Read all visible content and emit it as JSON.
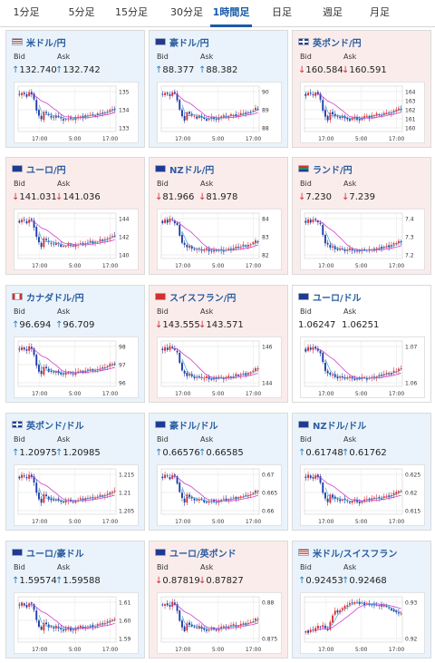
{
  "tabs": [
    "1分足",
    "5分足",
    "15分足",
    "30分足",
    "1時間足",
    "日足",
    "週足",
    "月足"
  ],
  "active_tab": 4,
  "labels": {
    "bid": "Bid",
    "ask": "Ask"
  },
  "colors": {
    "accent": "#1a5aa8",
    "up": "#2a7ab8",
    "down": "#d03030",
    "candle_up": "#e03030",
    "candle_down": "#1f3ea6",
    "ma1": "#d040d0",
    "ma2": "#40a0e0"
  },
  "cards": [
    {
      "name": "米ドル/円",
      "flag": "us",
      "bg": "up",
      "bid": "132.740",
      "ask": "132.742",
      "dir": "up",
      "yticks": [
        "135",
        "134",
        "133"
      ],
      "xticks": [
        "17:00",
        "5:00",
        "17:00"
      ]
    },
    {
      "name": "豪ドル/円",
      "flag": "au",
      "bg": "up",
      "bid": "88.377",
      "ask": "88.382",
      "dir": "up",
      "yticks": [
        "90",
        "89",
        "88"
      ],
      "xticks": [
        "17:00",
        "5:00",
        "17:00"
      ]
    },
    {
      "name": "英ポンド/円",
      "flag": "gb",
      "bg": "down",
      "bid": "160.584",
      "ask": "160.591",
      "dir": "down",
      "yticks": [
        "164",
        "163",
        "162",
        "161",
        "160"
      ],
      "xticks": [
        "17:00",
        "5:00",
        "17:00"
      ]
    },
    {
      "name": "ユーロ/円",
      "flag": "eu",
      "bg": "down",
      "bid": "141.031",
      "ask": "141.036",
      "dir": "down",
      "yticks": [
        "144",
        "142",
        "140"
      ],
      "xticks": [
        "17:00",
        "5:00",
        "17:00"
      ]
    },
    {
      "name": "NZドル/円",
      "flag": "nz",
      "bg": "down",
      "bid": "81.966",
      "ask": "81.978",
      "dir": "down",
      "yticks": [
        "84",
        "83",
        "82"
      ],
      "xticks": [
        "17:00",
        "5:00",
        "17:00"
      ]
    },
    {
      "name": "ランド/円",
      "flag": "za",
      "bg": "down",
      "bid": "7.230",
      "ask": "7.239",
      "dir": "down",
      "yticks": [
        "7.4",
        "7.3",
        "7.2"
      ],
      "xticks": [
        "17:00",
        "5:00",
        "17:00"
      ]
    },
    {
      "name": "カナダドル/円",
      "flag": "ca",
      "bg": "up",
      "bid": "96.694",
      "ask": "96.709",
      "dir": "up",
      "yticks": [
        "98",
        "97",
        "96"
      ],
      "xticks": [
        "17:00",
        "5:00",
        "17:00"
      ]
    },
    {
      "name": "スイスフラン/円",
      "flag": "ch",
      "bg": "down",
      "bid": "143.555",
      "ask": "143.571",
      "dir": "down",
      "yticks": [
        "146",
        "144"
      ],
      "xticks": [
        "17:00",
        "5:00",
        "17:00"
      ]
    },
    {
      "name": "ユーロ/ドル",
      "flag": "eu",
      "bg": "white",
      "bid": "1.06247",
      "ask": "1.06251",
      "dir": "none",
      "yticks": [
        "1.07",
        "1.06"
      ],
      "xticks": [
        "17:00",
        "5:00",
        "17:00"
      ]
    },
    {
      "name": "英ポンド/ドル",
      "flag": "gb",
      "bg": "up",
      "bid": "1.20975",
      "ask": "1.20985",
      "dir": "up",
      "yticks": [
        "1.215",
        "1.21",
        "1.205"
      ],
      "xticks": [
        "17:00",
        "5:00",
        "17:00"
      ]
    },
    {
      "name": "豪ドル/ドル",
      "flag": "au",
      "bg": "up",
      "bid": "0.66576",
      "ask": "0.66585",
      "dir": "up",
      "yticks": [
        "0.67",
        "0.665",
        "0.66"
      ],
      "xticks": [
        "17:00",
        "5:00",
        "17:00"
      ]
    },
    {
      "name": "NZドル/ドル",
      "flag": "nz",
      "bg": "up",
      "bid": "0.61748",
      "ask": "0.61762",
      "dir": "up",
      "yticks": [
        "0.625",
        "0.62",
        "0.615"
      ],
      "xticks": [
        "17:00",
        "5:00",
        "17:00"
      ]
    },
    {
      "name": "ユーロ/豪ドル",
      "flag": "eu",
      "bg": "up",
      "bid": "1.59574",
      "ask": "1.59588",
      "dir": "up",
      "yticks": [
        "1.61",
        "1.60",
        "1.59"
      ],
      "xticks": [
        "17:00",
        "5:00",
        "17:00"
      ]
    },
    {
      "name": "ユーロ/英ポンド",
      "flag": "eu",
      "bg": "down",
      "bid": "0.87819",
      "ask": "0.87827",
      "dir": "down",
      "yticks": [
        "0.88",
        "0.875"
      ],
      "xticks": [
        "17:00",
        "5:00",
        "17:00"
      ]
    },
    {
      "name": "米ドル/スイスフラン",
      "flag": "us",
      "bg": "up",
      "bid": "0.92453",
      "ask": "0.92468",
      "dir": "up",
      "yticks": [
        "0.93",
        "0.92"
      ],
      "xticks": [
        "17:00",
        "5:00",
        "17:00"
      ]
    }
  ]
}
